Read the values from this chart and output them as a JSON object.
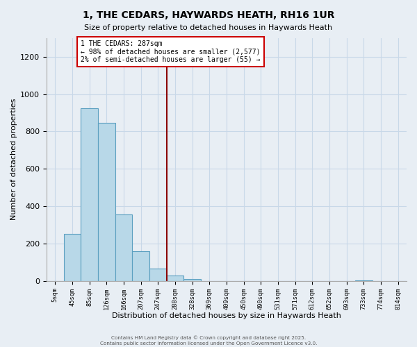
{
  "title": "1, THE CEDARS, HAYWARDS HEATH, RH16 1UR",
  "subtitle": "Size of property relative to detached houses in Haywards Heath",
  "xlabel": "Distribution of detached houses by size in Haywards Heath",
  "ylabel": "Number of detached properties",
  "bin_labels": [
    "5sqm",
    "45sqm",
    "85sqm",
    "126sqm",
    "166sqm",
    "207sqm",
    "247sqm",
    "288sqm",
    "328sqm",
    "369sqm",
    "409sqm",
    "450sqm",
    "490sqm",
    "531sqm",
    "571sqm",
    "612sqm",
    "652sqm",
    "693sqm",
    "733sqm",
    "774sqm",
    "814sqm"
  ],
  "bin_values": [
    0,
    250,
    925,
    845,
    355,
    158,
    65,
    30,
    10,
    0,
    0,
    0,
    0,
    0,
    0,
    0,
    0,
    0,
    2,
    0,
    0
  ],
  "bar_color": "#b8d8e8",
  "bar_edge_color": "#5a9fc0",
  "vline_color": "#8b0000",
  "annotation_text": "1 THE CEDARS: 287sqm\n← 98% of detached houses are smaller (2,577)\n2% of semi-detached houses are larger (55) →",
  "annotation_box_color": "white",
  "annotation_box_edge": "#cc0000",
  "ylim": [
    0,
    1300
  ],
  "yticks": [
    0,
    200,
    400,
    600,
    800,
    1000,
    1200
  ],
  "grid_color": "#c8d8e8",
  "bg_color": "#e8eef4",
  "footer_line1": "Contains HM Land Registry data © Crown copyright and database right 2025.",
  "footer_line2": "Contains public sector information licensed under the Open Government Licence v3.0."
}
